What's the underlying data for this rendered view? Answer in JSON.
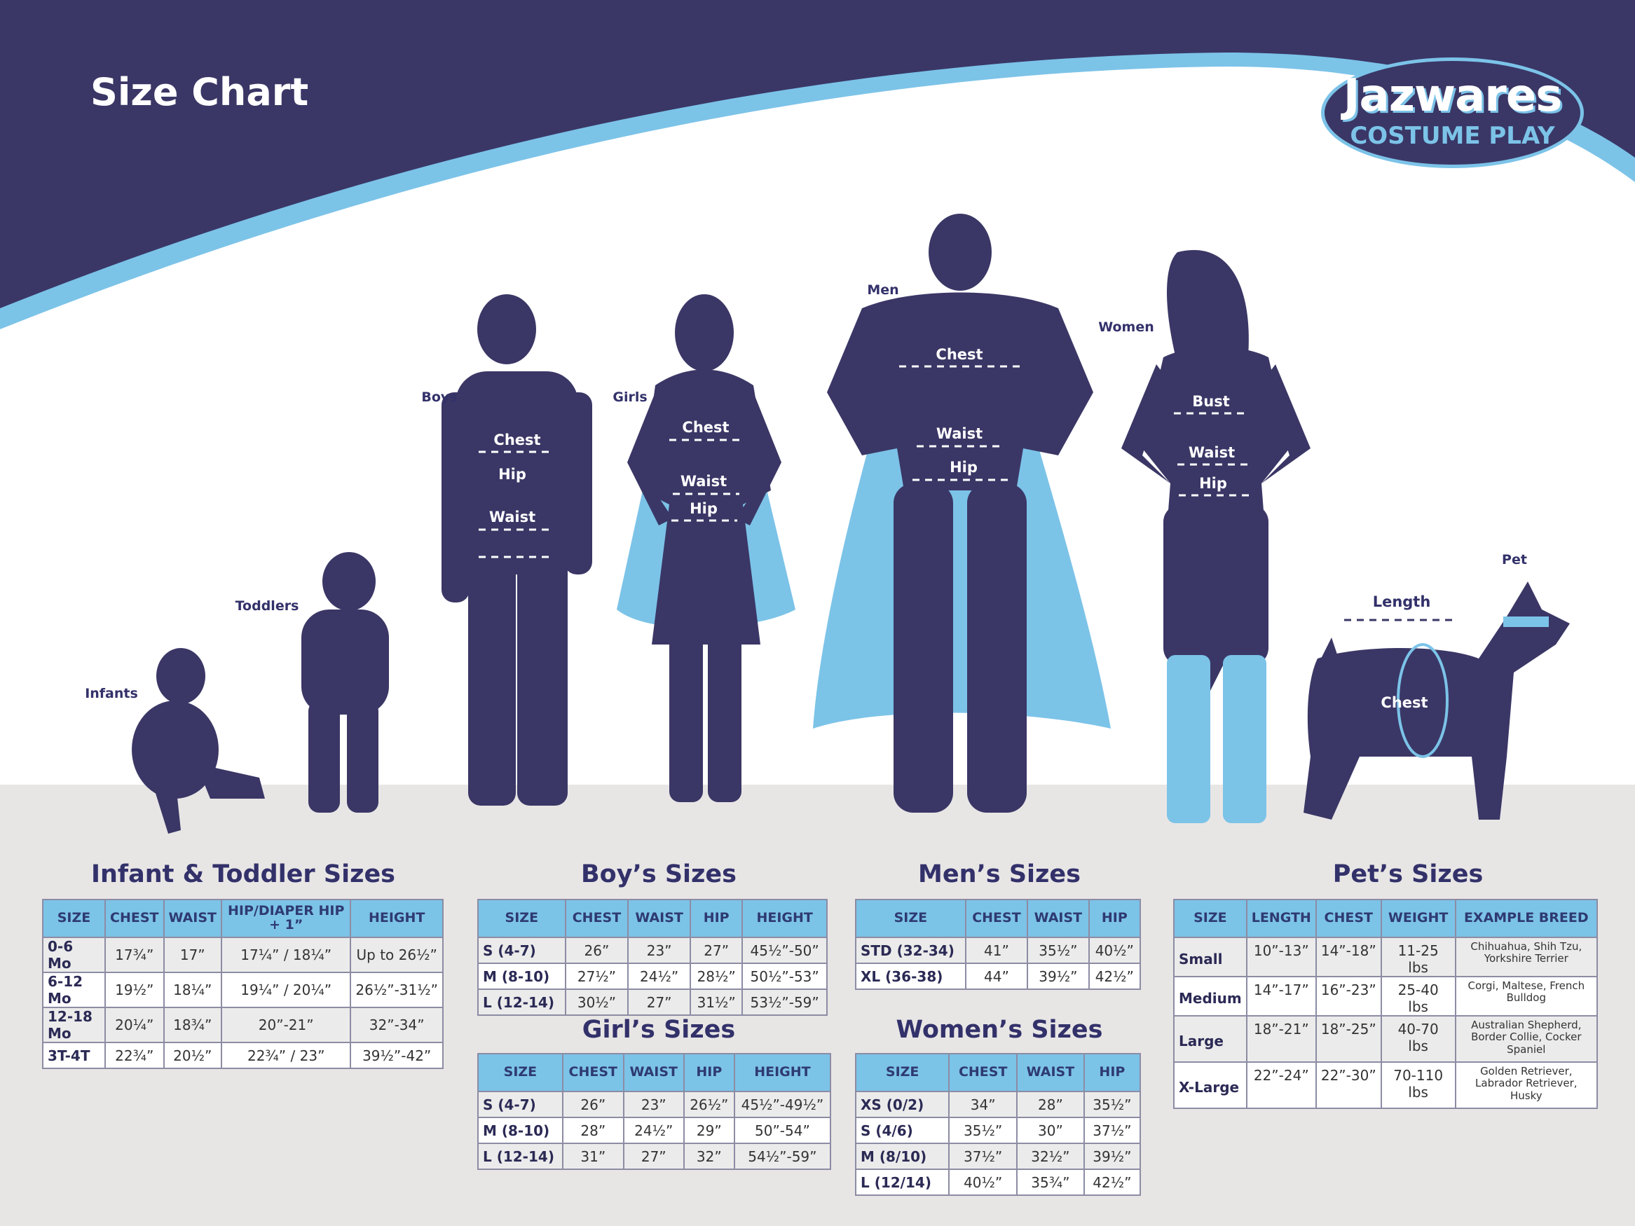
{
  "header": {
    "title": "Size Chart"
  },
  "logo": {
    "line1": "Jazwares",
    "line2": "COSTUME PLAY"
  },
  "colors": {
    "navy": "#3a3766",
    "light_blue": "#7cc3e8",
    "floor": "#e8e6e5"
  },
  "figures": {
    "infants": "Infants",
    "toddlers": "Toddlers",
    "boys": {
      "label": "Boys",
      "chest": "Chest",
      "hip": "Hip",
      "waist": "Waist"
    },
    "girls": {
      "label": "Girls",
      "chest": "Chest",
      "waist": "Waist",
      "hip": "Hip"
    },
    "men": {
      "label": "Men",
      "chest": "Chest",
      "waist": "Waist",
      "hip": "Hip"
    },
    "women": {
      "label": "Women",
      "bust": "Bust",
      "waist": "Waist",
      "hip": "Hip"
    },
    "pet": {
      "label": "Pet",
      "length": "Length",
      "chest": "Chest"
    }
  },
  "tables": {
    "infant": {
      "title": "Infant & Toddler Sizes",
      "headers": [
        "SIZE",
        "CHEST",
        "WAIST",
        "HIP/DIAPER HIP + 1”",
        "HEIGHT"
      ],
      "rows": [
        [
          "0-6 Mo",
          "17¾”",
          "17”",
          "17¼” / 18¼”",
          "Up to 26½”"
        ],
        [
          "6-12 Mo",
          "19½”",
          "18¼”",
          "19¼” / 20¼”",
          "26½”-31½”"
        ],
        [
          "12-18 Mo",
          "20¼”",
          "18¾”",
          "20”-21”",
          "32”-34”"
        ],
        [
          "3T-4T",
          "22¾”",
          "20½”",
          "22¾” / 23”",
          "39½”-42”"
        ]
      ]
    },
    "boys": {
      "title": "Boy’s Sizes",
      "headers": [
        "SIZE",
        "CHEST",
        "WAIST",
        "HIP",
        "HEIGHT"
      ],
      "rows": [
        [
          "S (4-7)",
          "26”",
          "23”",
          "27”",
          "45½”-50”"
        ],
        [
          "M (8-10)",
          "27½”",
          "24½”",
          "28½”",
          "50½”-53”"
        ],
        [
          "L (12-14)",
          "30½”",
          "27”",
          "31½”",
          "53½”-59”"
        ]
      ]
    },
    "girls": {
      "title": "Girl’s Sizes",
      "headers": [
        "SIZE",
        "CHEST",
        "WAIST",
        "HIP",
        "HEIGHT"
      ],
      "rows": [
        [
          "S (4-7)",
          "26”",
          "23”",
          "26½”",
          "45½”-49½”"
        ],
        [
          "M (8-10)",
          "28”",
          "24½”",
          "29”",
          "50”-54”"
        ],
        [
          "L (12-14)",
          "31”",
          "27”",
          "32”",
          "54½”-59”"
        ]
      ]
    },
    "men": {
      "title": "Men’s Sizes",
      "headers": [
        "SIZE",
        "CHEST",
        "WAIST",
        "HIP"
      ],
      "rows": [
        [
          "STD (32-34)",
          "41”",
          "35½”",
          "40½”"
        ],
        [
          "XL (36-38)",
          "44”",
          "39½”",
          "42½”"
        ]
      ]
    },
    "women": {
      "title": "Women’s Sizes",
      "headers": [
        "SIZE",
        "CHEST",
        "WAIST",
        "HIP"
      ],
      "rows": [
        [
          "XS (0/2)",
          "34”",
          "28”",
          "35½”"
        ],
        [
          "S (4/6)",
          "35½”",
          "30”",
          "37½”"
        ],
        [
          "M (8/10)",
          "37½”",
          "32½”",
          "39½”"
        ],
        [
          "L (12/14)",
          "40½”",
          "35¾”",
          "42½”"
        ]
      ]
    },
    "pets": {
      "title": "Pet’s Sizes",
      "headers": [
        "SIZE",
        "LENGTH",
        "CHEST",
        "WEIGHT",
        "EXAMPLE BREED"
      ],
      "rows": [
        [
          "Small",
          "10”-13”",
          "14”-18”",
          "11-25 lbs",
          "Chihuahua, Shih Tzu, Yorkshire Terrier"
        ],
        [
          "Medium",
          "14”-17”",
          "16”-23”",
          "25-40 lbs",
          "Corgi, Maltese, French Bulldog"
        ],
        [
          "Large",
          "18”-21”",
          "18”-25”",
          "40-70 lbs",
          "Australian Shepherd, Border Collie, Cocker Spaniel"
        ],
        [
          "X-Large",
          "22”-24”",
          "22”-30”",
          "70-110 lbs",
          "Golden Retriever, Labrador Retriever, Husky"
        ]
      ]
    }
  }
}
